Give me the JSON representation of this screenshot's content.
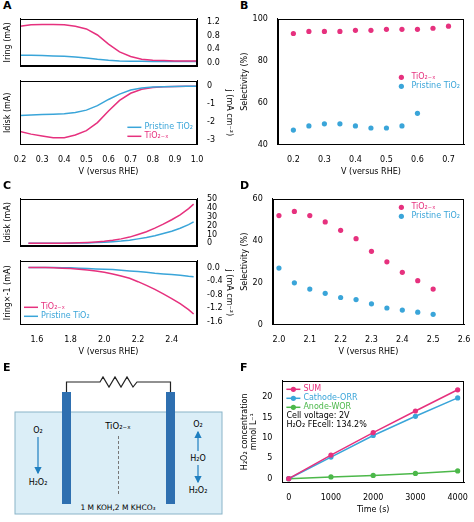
{
  "chart_data": [
    {
      "panel": "A",
      "type": "line",
      "grid": false,
      "x": [
        0.2,
        0.25,
        0.3,
        0.35,
        0.4,
        0.45,
        0.5,
        0.55,
        0.6,
        0.65,
        0.7,
        0.75,
        0.8,
        0.85,
        0.9,
        0.95,
        1.0
      ],
      "xlim": [
        0.2,
        1.0
      ],
      "ylabel": "Iring (mA)",
      "y2lim": [
        -0.1,
        1.3
      ],
      "y2ticks": [
        {
          "value": 0,
          "label": "0.0"
        },
        0.4,
        0.8,
        1.2
      ],
      "series": [
        {
          "color": "#e6317e",
          "axis": "y2",
          "values": [
            1.08,
            1.12,
            1.13,
            1.13,
            1.12,
            1.08,
            1.0,
            0.82,
            0.55,
            0.32,
            0.18,
            0.1,
            0.07,
            0.06,
            0.05,
            0.05,
            0.05
          ]
        },
        {
          "color": "#3aa5d9",
          "axis": "y2",
          "values": [
            0.22,
            0.22,
            0.21,
            0.2,
            0.19,
            0.17,
            0.14,
            0.1,
            0.07,
            0.05,
            0.04,
            0.04,
            0.03,
            0.03,
            0.03,
            0.03,
            0.03
          ]
        }
      ]
    },
    {
      "type": "line",
      "grid": false,
      "legend": "lower right",
      "x": [
        0.2,
        0.25,
        0.3,
        0.35,
        0.4,
        0.45,
        0.5,
        0.55,
        0.6,
        0.65,
        0.7,
        0.75,
        0.8,
        0.85,
        0.9,
        0.95,
        1.0
      ],
      "xlim": [
        0.2,
        1.0
      ],
      "xticks": [
        0.2,
        0.3,
        0.4,
        0.5,
        0.6,
        0.7,
        0.8,
        0.9,
        {
          "value": 1,
          "label": "1.0"
        }
      ],
      "xlabel": "V (versus RHE)",
      "ylabel": "Idisk (mA)",
      "y2label": "j (mA cm⁻²)",
      "y2lim": [
        -3.3,
        0.3
      ],
      "y2ticks": [
        0,
        -1,
        -2,
        -3
      ],
      "series": [
        {
          "name": "Pristine TiO₂",
          "color": "#3aa5d9",
          "axis": "y2",
          "values": [
            -1.65,
            -1.62,
            -1.6,
            -1.58,
            -1.55,
            -1.48,
            -1.35,
            -1.1,
            -0.75,
            -0.45,
            -0.22,
            -0.1,
            -0.05,
            -0.03,
            -0.02,
            -0.01,
            0
          ]
        },
        {
          "name": "TiO₂₋ₓ",
          "color": "#e6317e",
          "axis": "y2",
          "values": [
            -2.55,
            -2.7,
            -2.8,
            -2.9,
            -2.9,
            -2.75,
            -2.5,
            -2.05,
            -1.4,
            -0.8,
            -0.4,
            -0.18,
            -0.08,
            -0.04,
            -0.02,
            -0.01,
            0
          ]
        }
      ]
    },
    {
      "panel": "B",
      "type": "scatter",
      "marker": "circle",
      "grid": false,
      "legend": "right",
      "x": [
        0.2,
        0.25,
        0.3,
        0.35,
        0.4,
        0.45,
        0.5,
        0.55,
        0.6,
        0.65,
        0.7
      ],
      "xlim": [
        0.15,
        0.75
      ],
      "xticks": [
        0.2,
        0.3,
        0.4,
        0.5,
        0.6,
        0.7
      ],
      "ylim": [
        40,
        100
      ],
      "yticks": [
        40,
        60,
        80,
        100
      ],
      "xlabel": "V (versus RHE)",
      "ylabel": "Selectivity (%)",
      "series": [
        {
          "name": "TiO₂₋ₓ",
          "color": "#e6317e",
          "values": [
            93,
            94,
            94,
            94,
            94.5,
            94.5,
            95,
            95,
            95,
            95.5,
            96.5
          ]
        },
        {
          "name": "Pristine TiO₂",
          "color": "#3aa5d9",
          "values": [
            47,
            49,
            50,
            50,
            49,
            48,
            48,
            49,
            55,
            null,
            null
          ]
        }
      ]
    },
    {
      "panel": "C",
      "type": "line",
      "grid": false,
      "x": [
        1.55,
        1.6,
        1.65,
        1.7,
        1.75,
        1.8,
        1.85,
        1.9,
        1.95,
        2.0,
        2.05,
        2.1,
        2.15,
        2.2,
        2.25,
        2.3,
        2.35,
        2.4,
        2.45,
        2.5,
        2.53
      ],
      "xlim": [
        1.5,
        2.55
      ],
      "ylabel": "Idisk (mA)",
      "y2lim": [
        -3,
        50
      ],
      "y2ticks": [
        0,
        10,
        20,
        30,
        40,
        50
      ],
      "series": [
        {
          "color": "#e6317e",
          "axis": "y2",
          "values": [
            0,
            0,
            0,
            0.1,
            0.2,
            0.3,
            0.6,
            1.0,
            1.6,
            2.4,
            3.5,
            5,
            7,
            10,
            13,
            17,
            21.5,
            26.5,
            32,
            39,
            44
          ]
        },
        {
          "color": "#3aa5d9",
          "axis": "y2",
          "values": [
            0,
            0,
            0,
            0,
            0.1,
            0.15,
            0.3,
            0.5,
            0.8,
            1.2,
            1.8,
            2.5,
            3.5,
            5,
            6.5,
            8.5,
            11,
            13.5,
            17,
            21,
            24
          ]
        }
      ]
    },
    {
      "type": "line",
      "grid": false,
      "legend": "lower left",
      "x": [
        1.55,
        1.6,
        1.65,
        1.7,
        1.75,
        1.8,
        1.85,
        1.9,
        1.95,
        2.0,
        2.05,
        2.1,
        2.15,
        2.2,
        2.25,
        2.3,
        2.35,
        2.4,
        2.45,
        2.5,
        2.53
      ],
      "xlim": [
        1.5,
        2.55
      ],
      "xticks": [
        1.6,
        1.8,
        {
          "value": 2,
          "label": "2.0"
        },
        2.2,
        2.4
      ],
      "xlabel": "V (versus RHE)",
      "ylabel": "Iring×-1 (mA)",
      "y2label": "j (mA cm⁻²)",
      "y2lim": [
        -1.7,
        0.2
      ],
      "y2ticks": [
        {
          "value": 0,
          "label": "0.0"
        },
        -0.4,
        -0.8,
        -1.2,
        -1.6
      ],
      "series": [
        {
          "name": "TiO₂₋ₓ",
          "color": "#e6317e",
          "axis": "y2",
          "values": [
            0,
            0,
            0,
            -0.01,
            -0.02,
            -0.03,
            -0.05,
            -0.07,
            -0.1,
            -0.14,
            -0.19,
            -0.25,
            -0.32,
            -0.42,
            -0.53,
            -0.65,
            -0.78,
            -0.92,
            -1.07,
            -1.25,
            -1.38
          ]
        },
        {
          "name": "Pristine TiO₂",
          "color": "#3aa5d9",
          "axis": "y2",
          "values": [
            0,
            0,
            0,
            0,
            -0.01,
            -0.01,
            -0.02,
            -0.03,
            -0.04,
            -0.05,
            -0.06,
            -0.08,
            -0.1,
            -0.12,
            -0.14,
            -0.17,
            -0.19,
            -0.21,
            -0.23,
            -0.26,
            -0.27
          ]
        }
      ]
    },
    {
      "panel": "D",
      "type": "scatter",
      "marker": "circle",
      "grid": false,
      "legend": "upper right",
      "x": [
        2.0,
        2.05,
        2.1,
        2.15,
        2.2,
        2.25,
        2.3,
        2.35,
        2.4,
        2.45,
        2.5
      ],
      "xlim": [
        1.98,
        2.6
      ],
      "xticks": [
        {
          "value": 2,
          "label": "2.0"
        },
        2.1,
        2.2,
        2.3,
        2.4,
        2.5,
        2.6
      ],
      "ylim": [
        0,
        60
      ],
      "yticks": [
        0,
        20,
        40,
        60
      ],
      "xlabel": "V (versus RHE)",
      "ylabel": "Selectivity (%)",
      "series": [
        {
          "name": "TiO₂₋ₓ",
          "color": "#e6317e",
          "values": [
            52,
            54,
            52,
            49,
            45,
            41,
            35,
            30,
            25,
            21,
            17
          ]
        },
        {
          "name": "Pristine TiO₂",
          "color": "#3aa5d9",
          "values": [
            27,
            20,
            17,
            15,
            13,
            12,
            10,
            8,
            7,
            6,
            5
          ]
        }
      ]
    },
    {
      "panel": "F",
      "type": "line",
      "marker": "circle",
      "grid": false,
      "legend": "upper left",
      "x": [
        0,
        1000,
        2000,
        3000,
        4000
      ],
      "xlim": [
        -150,
        4150
      ],
      "xticks": [
        0,
        1000,
        2000,
        3000,
        4000
      ],
      "ylim": [
        -1,
        24
      ],
      "yticks": [
        0,
        5,
        10,
        15,
        20
      ],
      "xlabel": "Time (s)",
      "ylabel": "H₂O₂ concentration mmol L⁻¹",
      "annotations": [
        "Cell voltage: 2V",
        "H₂O₂ FEcell: 134.2%"
      ],
      "series": [
        {
          "name": "SUM",
          "color": "#e6317e",
          "values": [
            0,
            5.8,
            11.3,
            16.6,
            21.8
          ]
        },
        {
          "name": "Cathode-ORR",
          "color": "#3aa5d9",
          "values": [
            0,
            5.3,
            10.6,
            15.3,
            19.8
          ]
        },
        {
          "name": "Anode-WOR",
          "color": "#4cb84a",
          "values": [
            0,
            0.45,
            0.8,
            1.3,
            1.9
          ]
        }
      ]
    }
  ],
  "diagram": {
    "panel": "E",
    "electrode": "TiO₂₋ₓ",
    "electrolyte": "1 M KOH,2 M KHCO₃",
    "cathode": {
      "in": "O₂",
      "out": "H₂O₂"
    },
    "anode": {
      "gas": "O₂",
      "in": "H₂O",
      "out": "H₂O₂"
    }
  }
}
